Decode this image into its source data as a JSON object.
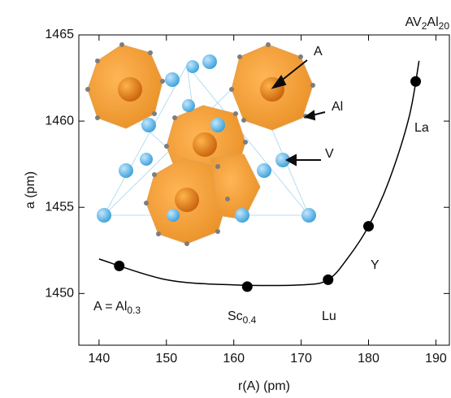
{
  "chart_data": {
    "type": "line",
    "title": {
      "text": "AV",
      "sub": "2",
      "text2": "Al",
      "sub2": "20"
    },
    "x_label": "r(A) (pm)",
    "y_label": "a (pm)",
    "xlim": [
      137,
      192
    ],
    "ylim": [
      1447,
      1465
    ],
    "xticks": [
      140,
      150,
      160,
      170,
      180,
      190
    ],
    "yticks": [
      1450,
      1455,
      1460,
      1465
    ],
    "series": [
      {
        "color": "#000000",
        "marker": false,
        "x": [
          140,
          150,
          160,
          170,
          174,
          177,
          180,
          183,
          186,
          187.5
        ],
        "values": [
          1452.0,
          1450.8,
          1450.5,
          1450.5,
          1450.8,
          1452.1,
          1453.9,
          1456.5,
          1460.2,
          1463.5
        ]
      },
      {
        "color": "#000000",
        "marker": true,
        "x": [
          143,
          162,
          174,
          180,
          187
        ],
        "values": [
          1451.6,
          1450.4,
          1450.8,
          1453.9,
          1462.3
        ]
      }
    ],
    "annotations": [
      {
        "text": "La",
        "sub": ""
      },
      {
        "text": "Y",
        "sub": ""
      },
      {
        "text": "Lu",
        "sub": ""
      },
      {
        "text": "Sc",
        "sub": "0.4"
      },
      {
        "text": "A = Al",
        "sub": "0.3"
      }
    ],
    "inset_labels": [
      "A",
      "Al",
      "V"
    ]
  }
}
